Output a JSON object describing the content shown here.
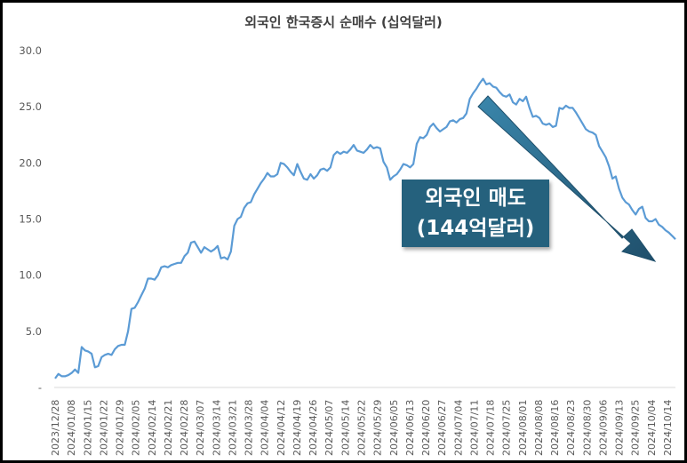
{
  "chart_data": {
    "type": "line",
    "title": "외국인 한국증시 순매수 (십억달러)",
    "y_ticks": [
      "30.0",
      "25.0",
      "20.0",
      "15.0",
      "10.0",
      "5.0",
      "-"
    ],
    "ylim": [
      0,
      30
    ],
    "grid": false,
    "x_ticks": [
      "2023/12/28",
      "2024/01/08",
      "2024/01/15",
      "2024/01/22",
      "2024/01/29",
      "2024/02/05",
      "2024/02/14",
      "2024/02/21",
      "2024/02/28",
      "2024/03/07",
      "2024/03/14",
      "2024/03/21",
      "2024/03/28",
      "2024/04/04",
      "2024/04/12",
      "2024/04/19",
      "2024/04/26",
      "2024/05/07",
      "2024/05/14",
      "2024/05/22",
      "2024/05/29",
      "2024/06/05",
      "2024/06/13",
      "2024/06/20",
      "2024/06/27",
      "2024/07/04",
      "2024/07/11",
      "2024/07/18",
      "2024/07/25",
      "2024/08/01",
      "2024/08/08",
      "2024/08/16",
      "2024/08/23",
      "2024/08/30",
      "2024/09/06",
      "2024/09/13",
      "2024/09/25",
      "2024/10/04",
      "2024/10/14"
    ],
    "series": [
      {
        "color": "#5b9bd5",
        "values": [
          0.8,
          1.2,
          1.0,
          1.0,
          1.1,
          1.3,
          1.6,
          1.3,
          3.6,
          3.3,
          3.2,
          3.0,
          1.8,
          1.9,
          2.7,
          2.9,
          3.0,
          2.9,
          3.4,
          3.7,
          3.8,
          3.8,
          5.0,
          7.0,
          7.1,
          7.6,
          8.2,
          8.8,
          9.7,
          9.7,
          9.6,
          10.0,
          10.7,
          10.8,
          10.7,
          10.9,
          11.0,
          11.1,
          11.1,
          11.7,
          12.0,
          12.9,
          13.0,
          12.5,
          12.0,
          12.5,
          12.3,
          12.1,
          12.3,
          12.6,
          11.5,
          11.6,
          11.4,
          12.1,
          14.4,
          15.0,
          15.2,
          16.0,
          16.4,
          16.5,
          17.2,
          17.7,
          18.2,
          18.6,
          19.1,
          18.8,
          18.8,
          19.0,
          20.0,
          19.9,
          19.6,
          19.2,
          18.9,
          19.9,
          19.2,
          18.6,
          18.5,
          19.0,
          18.6,
          18.9,
          19.4,
          19.5,
          19.3,
          19.6,
          20.7,
          21.0,
          20.8,
          21.0,
          20.9,
          21.2,
          21.6,
          21.1,
          21.0,
          20.9,
          21.2,
          21.6,
          21.3,
          21.4,
          21.3,
          20.1,
          19.6,
          18.5,
          18.8,
          19.0,
          19.4,
          19.9,
          19.8,
          19.6,
          19.9,
          21.7,
          22.3,
          22.2,
          22.5,
          23.2,
          23.5,
          23.1,
          22.8,
          23.0,
          23.2,
          23.7,
          23.8,
          23.6,
          23.9,
          24.0,
          24.4,
          25.7,
          26.2,
          26.6,
          27.1,
          27.5,
          27.0,
          27.1,
          26.8,
          26.7,
          26.3,
          26.0,
          25.9,
          26.1,
          25.4,
          25.2,
          25.7,
          25.5,
          25.9,
          24.9,
          24.1,
          24.2,
          24.0,
          23.5,
          23.4,
          23.5,
          23.2,
          23.3,
          24.9,
          24.8,
          25.1,
          24.9,
          24.9,
          24.5,
          24.0,
          23.5,
          23.0,
          22.8,
          22.7,
          22.5,
          21.5,
          21.0,
          20.5,
          19.7,
          18.6,
          18.8,
          17.7,
          16.9,
          16.5,
          16.3,
          15.8,
          15.4,
          15.9,
          16.1,
          15.1,
          14.8,
          14.8,
          15.0,
          14.5,
          14.3,
          14.0,
          13.8,
          13.5,
          13.2
        ]
      }
    ],
    "annotations": [
      {
        "lines": [
          "외국인 매도",
          "(144억달러)"
        ],
        "fill": "#25617d"
      }
    ]
  }
}
